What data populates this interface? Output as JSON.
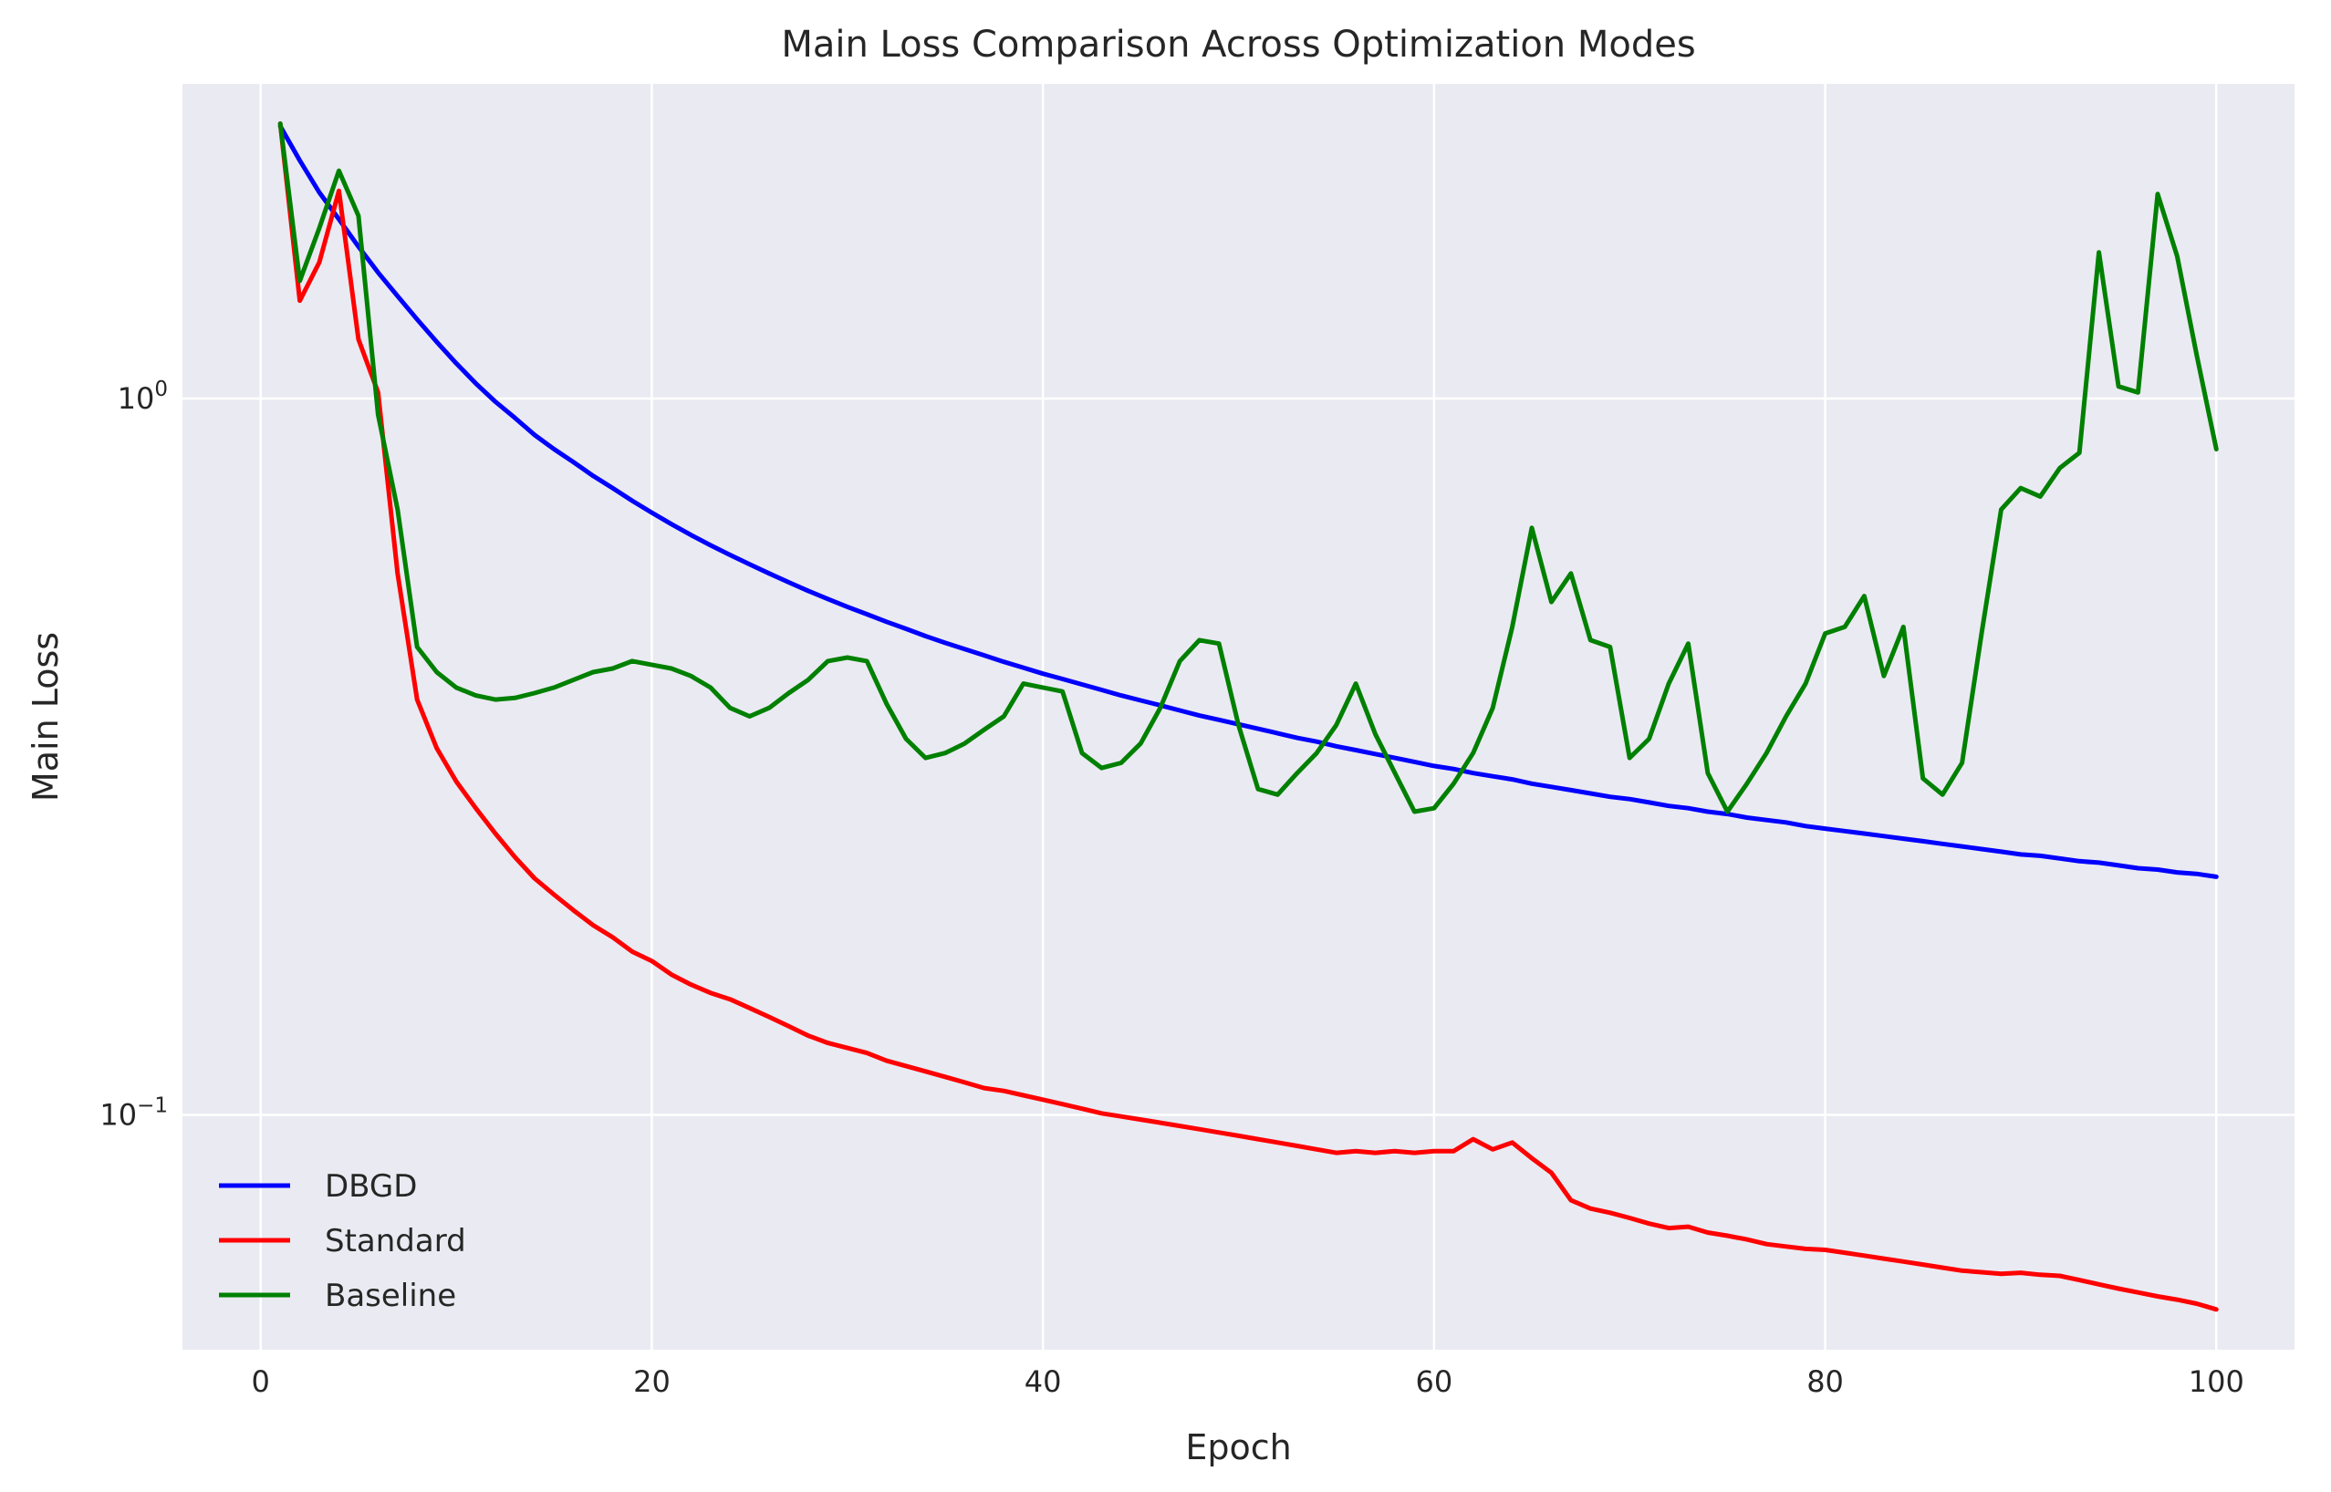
{
  "chart_data": {
    "type": "line",
    "title": "Main Loss Comparison Across Optimization Modes",
    "xlabel": "Epoch",
    "ylabel": "Main Loss",
    "yscale": "log",
    "xlim": [
      -4,
      104
    ],
    "ylim": [
      0.047,
      2.75
    ],
    "grid": true,
    "legend_position": "lower-left",
    "x_ticks": [
      {
        "value": 0,
        "label": "0"
      },
      {
        "value": 20,
        "label": "20"
      },
      {
        "value": 40,
        "label": "40"
      },
      {
        "value": 60,
        "label": "60"
      },
      {
        "value": 80,
        "label": "80"
      },
      {
        "value": 100,
        "label": "100"
      }
    ],
    "y_ticks": [
      {
        "value": 1.0,
        "base": "10",
        "exp": "0"
      },
      {
        "value": 0.1,
        "base": "10",
        "exp": "−1"
      }
    ],
    "x": [
      1,
      2,
      3,
      4,
      5,
      6,
      7,
      8,
      9,
      10,
      11,
      12,
      13,
      14,
      15,
      16,
      17,
      18,
      19,
      20,
      21,
      22,
      23,
      24,
      25,
      26,
      27,
      28,
      29,
      30,
      31,
      32,
      33,
      34,
      35,
      36,
      37,
      38,
      39,
      40,
      41,
      42,
      43,
      44,
      45,
      46,
      47,
      48,
      49,
      50,
      51,
      52,
      53,
      54,
      55,
      56,
      57,
      58,
      59,
      60,
      61,
      62,
      63,
      64,
      65,
      66,
      67,
      68,
      69,
      70,
      71,
      72,
      73,
      74,
      75,
      76,
      77,
      78,
      79,
      80,
      81,
      82,
      83,
      84,
      85,
      86,
      87,
      88,
      89,
      90,
      91,
      92,
      93,
      94,
      95,
      96,
      97,
      98,
      99,
      100
    ],
    "series": [
      {
        "name": "DBGD",
        "color": "#0000ff",
        "values": [
          2.4,
          2.15,
          1.94,
          1.78,
          1.63,
          1.5,
          1.39,
          1.29,
          1.2,
          1.12,
          1.05,
          0.99,
          0.94,
          0.89,
          0.85,
          0.815,
          0.78,
          0.75,
          0.72,
          0.693,
          0.668,
          0.645,
          0.624,
          0.605,
          0.587,
          0.57,
          0.554,
          0.539,
          0.525,
          0.512,
          0.5,
          0.488,
          0.477,
          0.466,
          0.456,
          0.447,
          0.438,
          0.429,
          0.421,
          0.413,
          0.406,
          0.399,
          0.392,
          0.385,
          0.379,
          0.373,
          0.367,
          0.361,
          0.356,
          0.351,
          0.346,
          0.341,
          0.336,
          0.332,
          0.327,
          0.323,
          0.319,
          0.315,
          0.311,
          0.307,
          0.304,
          0.3,
          0.297,
          0.294,
          0.29,
          0.287,
          0.284,
          0.281,
          0.278,
          0.276,
          0.273,
          0.27,
          0.268,
          0.265,
          0.263,
          0.26,
          0.258,
          0.256,
          0.253,
          0.251,
          0.249,
          0.247,
          0.245,
          0.243,
          0.241,
          0.239,
          0.237,
          0.235,
          0.233,
          0.231,
          0.23,
          0.228,
          0.226,
          0.225,
          0.223,
          0.221,
          0.22,
          0.218,
          0.217,
          0.215
        ]
      },
      {
        "name": "Standard",
        "color": "#ff0000",
        "values": [
          2.42,
          1.37,
          1.55,
          1.95,
          1.21,
          1.02,
          0.57,
          0.38,
          0.325,
          0.292,
          0.268,
          0.247,
          0.229,
          0.214,
          0.203,
          0.193,
          0.184,
          0.177,
          0.169,
          0.164,
          0.157,
          0.152,
          0.148,
          0.145,
          0.141,
          0.137,
          0.133,
          0.129,
          0.126,
          0.124,
          0.122,
          0.119,
          0.117,
          0.115,
          0.113,
          0.111,
          0.109,
          0.108,
          0.1065,
          0.105,
          0.1035,
          0.102,
          0.1005,
          0.0995,
          0.0985,
          0.0975,
          0.0965,
          0.0955,
          0.0945,
          0.0935,
          0.0925,
          0.0915,
          0.0905,
          0.0895,
          0.0885,
          0.089,
          0.0885,
          0.089,
          0.0885,
          0.089,
          0.089,
          0.0925,
          0.0895,
          0.0915,
          0.087,
          0.083,
          0.076,
          0.074,
          0.073,
          0.0718,
          0.0705,
          0.0695,
          0.0698,
          0.0685,
          0.0678,
          0.067,
          0.066,
          0.0655,
          0.065,
          0.0648,
          0.0642,
          0.0636,
          0.063,
          0.0624,
          0.0618,
          0.0612,
          0.0606,
          0.0603,
          0.06,
          0.0602,
          0.0598,
          0.0596,
          0.0588,
          0.058,
          0.0572,
          0.0565,
          0.0558,
          0.0552,
          0.0545,
          0.0535
        ]
      },
      {
        "name": "Baseline",
        "color": "#008000",
        "values": [
          2.42,
          1.46,
          1.73,
          2.08,
          1.8,
          0.95,
          0.7,
          0.45,
          0.415,
          0.395,
          0.385,
          0.38,
          0.382,
          0.388,
          0.395,
          0.405,
          0.415,
          0.42,
          0.43,
          0.425,
          0.42,
          0.41,
          0.395,
          0.37,
          0.36,
          0.37,
          0.388,
          0.405,
          0.43,
          0.435,
          0.43,
          0.375,
          0.335,
          0.315,
          0.32,
          0.33,
          0.345,
          0.36,
          0.4,
          0.395,
          0.39,
          0.32,
          0.305,
          0.31,
          0.33,
          0.37,
          0.43,
          0.46,
          0.455,
          0.35,
          0.285,
          0.28,
          0.3,
          0.32,
          0.35,
          0.4,
          0.34,
          0.3,
          0.265,
          0.268,
          0.29,
          0.32,
          0.37,
          0.48,
          0.66,
          0.52,
          0.57,
          0.46,
          0.45,
          0.315,
          0.335,
          0.4,
          0.455,
          0.3,
          0.265,
          0.29,
          0.32,
          0.36,
          0.4,
          0.47,
          0.48,
          0.53,
          0.41,
          0.48,
          0.295,
          0.28,
          0.31,
          0.47,
          0.7,
          0.75,
          0.73,
          0.8,
          0.84,
          1.6,
          1.04,
          1.02,
          1.93,
          1.58,
          1.15,
          0.85
        ]
      }
    ]
  }
}
